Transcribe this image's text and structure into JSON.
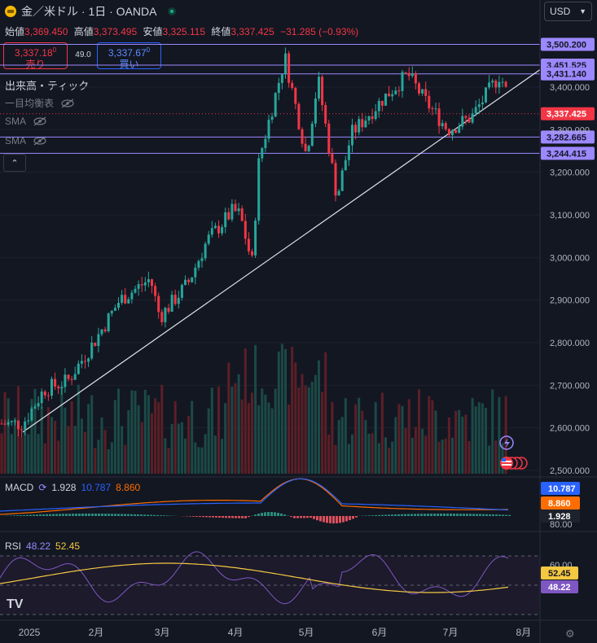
{
  "header": {
    "title": "金／米ドル · 1日 · OANDA",
    "open_label": "始値",
    "open": "3,369.450",
    "high_label": "高値",
    "high": "3,373.495",
    "low_label": "安値",
    "low": "3,325.115",
    "close_label": "終値",
    "close": "3,337.425",
    "change": "−31.285 (−0.93%)",
    "currency": "USD"
  },
  "trade": {
    "sell_price": "3,337.18",
    "sell_sup": "0",
    "sell_label": "売り",
    "spread": "49.0",
    "buy_price": "3,337.67",
    "buy_sup": "0",
    "buy_label": "買い"
  },
  "indicators": {
    "volume": "出来高・ティック",
    "ichimoku": "一目均衡表",
    "sma1": "SMA",
    "sma2": "SMA",
    "macd_label": "MACD",
    "macd_v1": "1.928",
    "macd_v2": "10.787",
    "macd_v3": "8.860",
    "rsi_label": "RSI",
    "rsi_v1": "48.22",
    "rsi_v2": "52.45"
  },
  "colors": {
    "background": "#131722",
    "up": "#26a69a",
    "down": "#f23645",
    "level_line": "#9c88ff",
    "macd_line": "#2962ff",
    "signal_line": "#ff6d00",
    "rsi_line": "#7e57c2",
    "rsi_ma": "#f5c842"
  },
  "price_axis": {
    "ticks": [
      "3,400.000",
      "3,300.000",
      "3,200.000",
      "3,100.000",
      "3,000.000",
      "2,900.000",
      "2,800.000",
      "2,700.000",
      "2,600.000",
      "2,500.000"
    ],
    "level_labels": [
      "3,500.200",
      "3,451.525",
      "3,431.140",
      "3,337.425",
      "3,282.665",
      "3,244.415"
    ]
  },
  "time_axis": {
    "labels": [
      "2025",
      "2月",
      "3月",
      "4月",
      "5月",
      "6月",
      "7月",
      "8月"
    ]
  },
  "macd_axis": {
    "labels": [
      "10.787",
      "8.860",
      "1.928"
    ]
  },
  "rsi_axis": {
    "ticks": [
      "80.00",
      "60.00",
      "40.00"
    ],
    "labels": [
      "52.45",
      "48.22"
    ]
  },
  "chart_data": {
    "type": "candlestick",
    "title": "金／米ドル · 1日 · OANDA",
    "ylim": [
      2480,
      3520
    ],
    "x_start": "2025-01-01",
    "x_end": "2025-07-31",
    "horizontal_levels": [
      3500.2,
      3451.525,
      3431.14,
      3282.665,
      3244.415
    ],
    "current_price": 3337.425,
    "trendline": [
      {
        "date": "2025-01-01",
        "price": 2590
      },
      {
        "date": "2025-07-31",
        "price": 3410
      }
    ],
    "close_path": [
      {
        "date": "2025-01-01",
        "price": 2610
      },
      {
        "date": "2025-01-10",
        "price": 2690
      },
      {
        "date": "2025-01-20",
        "price": 2710
      },
      {
        "date": "2025-01-31",
        "price": 2800
      },
      {
        "date": "2025-02-11",
        "price": 2900
      },
      {
        "date": "2025-02-24",
        "price": 2950
      },
      {
        "date": "2025-02-28",
        "price": 2860
      },
      {
        "date": "2025-03-12",
        "price": 2940
      },
      {
        "date": "2025-03-20",
        "price": 3040
      },
      {
        "date": "2025-03-31",
        "price": 3110
      },
      {
        "date": "2025-04-03",
        "price": 3100
      },
      {
        "date": "2025-04-08",
        "price": 2985
      },
      {
        "date": "2025-04-11",
        "price": 3230
      },
      {
        "date": "2025-04-22",
        "price": 3470
      },
      {
        "date": "2025-05-01",
        "price": 3240
      },
      {
        "date": "2025-05-06",
        "price": 3420
      },
      {
        "date": "2025-05-14",
        "price": 3140
      },
      {
        "date": "2025-05-20",
        "price": 3290
      },
      {
        "date": "2025-06-02",
        "price": 3370
      },
      {
        "date": "2025-06-13",
        "price": 3430
      },
      {
        "date": "2025-06-20",
        "price": 3370
      },
      {
        "date": "2025-06-30",
        "price": 3300
      },
      {
        "date": "2025-07-10",
        "price": 3330
      },
      {
        "date": "2025-07-22",
        "price": 3430
      },
      {
        "date": "2025-07-28",
        "price": 3337
      }
    ],
    "macd": {
      "macd": 10.787,
      "signal": 8.86,
      "histogram": 1.928
    },
    "rsi": {
      "rsi": 48.22,
      "ma": 52.45,
      "bands": [
        70,
        50,
        30
      ]
    }
  }
}
